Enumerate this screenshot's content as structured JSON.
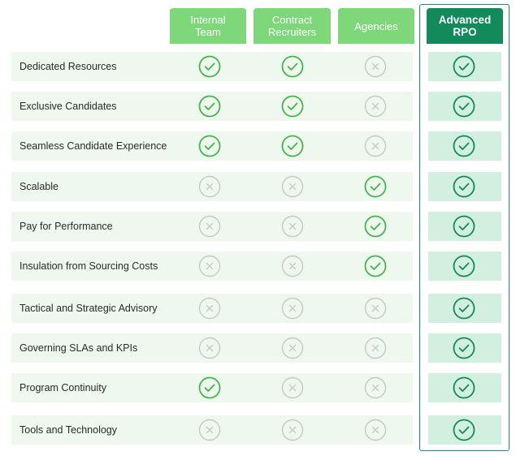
{
  "columns": [
    {
      "label_line1": "Internal",
      "label_line2": "Team"
    },
    {
      "label_line1": "Contract",
      "label_line2": "Recruiters"
    },
    {
      "label_line1": "Agencies",
      "label_line2": ""
    },
    {
      "label_line1": "Advanced",
      "label_line2": "RPO"
    }
  ],
  "rows": [
    {
      "label": "Dedicated Resources",
      "marks": [
        "check",
        "check",
        "cross",
        "check"
      ]
    },
    {
      "label": "Exclusive Candidates",
      "marks": [
        "check",
        "check",
        "cross",
        "check"
      ]
    },
    {
      "label": "Seamless Candidate Experience",
      "marks": [
        "check",
        "check",
        "cross",
        "check"
      ]
    },
    {
      "label": "Scalable",
      "marks": [
        "cross",
        "cross",
        "check",
        "check"
      ]
    },
    {
      "label": "Pay for Performance",
      "marks": [
        "cross",
        "cross",
        "check",
        "check"
      ]
    },
    {
      "label": "Insulation from Sourcing Costs",
      "marks": [
        "cross",
        "cross",
        "check",
        "check"
      ]
    },
    {
      "label": "Tactical and Strategic Advisory",
      "marks": [
        "cross",
        "cross",
        "cross",
        "check"
      ]
    },
    {
      "label": "Governing SLAs and KPIs",
      "marks": [
        "cross",
        "cross",
        "cross",
        "check"
      ]
    },
    {
      "label": "Program Continuity",
      "marks": [
        "check",
        "cross",
        "cross",
        "check"
      ]
    },
    {
      "label": "Tools and Technology",
      "marks": [
        "cross",
        "cross",
        "cross",
        "check"
      ]
    }
  ],
  "colors": {
    "header_light": "#7ed87a",
    "header_dark": "#138a5c",
    "check_bright": "#43b649",
    "check_dark": "#138a5c",
    "cross": "#c8c8c8",
    "row_bg": "#eef8ee",
    "rpo_bg": "#d2efe0"
  },
  "icons": {
    "check": "check-circle-icon",
    "cross": "x-circle-icon"
  }
}
